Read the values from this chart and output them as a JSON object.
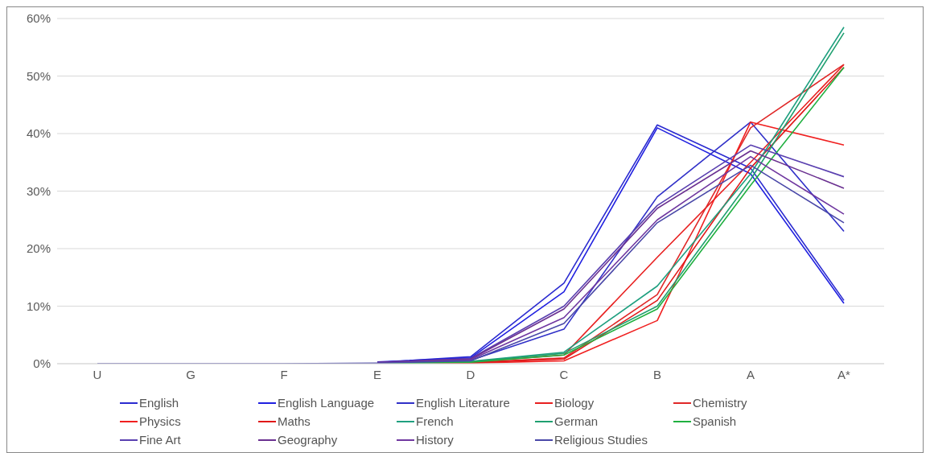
{
  "chart_data": {
    "type": "line",
    "categories": [
      "U",
      "G",
      "F",
      "E",
      "D",
      "C",
      "B",
      "A",
      "A*"
    ],
    "ylim": [
      0,
      60
    ],
    "yticks": [
      {
        "value": 0,
        "label": "0%"
      },
      {
        "value": 10,
        "label": "10%"
      },
      {
        "value": 20,
        "label": "20%"
      },
      {
        "value": 30,
        "label": "30%"
      },
      {
        "value": 40,
        "label": "40%"
      },
      {
        "value": 50,
        "label": "50%"
      },
      {
        "value": 60,
        "label": "60%"
      }
    ],
    "grid": "y",
    "legend": "bottom",
    "marker": "none",
    "line_style": "solid",
    "series": [
      {
        "name": "English",
        "color": "#2b2bd0",
        "values": [
          null,
          null,
          null,
          0.2,
          1.2,
          14,
          41.5,
          34,
          11
        ]
      },
      {
        "name": "English Language",
        "color": "#2020e0",
        "values": [
          null,
          null,
          null,
          0.3,
          1,
          12.5,
          41,
          33,
          10.5
        ]
      },
      {
        "name": "English Literature",
        "color": "#3030c8",
        "values": [
          null,
          null,
          null,
          0.1,
          0.6,
          6,
          29,
          42,
          23
        ]
      },
      {
        "name": "Biology",
        "color": "#e82020",
        "values": [
          null,
          null,
          null,
          0,
          0.3,
          1.5,
          18.5,
          35,
          52
        ]
      },
      {
        "name": "Chemistry",
        "color": "#e02828",
        "values": [
          null,
          null,
          null,
          0,
          0.2,
          1,
          12,
          41,
          52
        ]
      },
      {
        "name": "Physics",
        "color": "#f02020",
        "values": [
          null,
          null,
          null,
          0,
          0.1,
          0.5,
          7.5,
          42,
          38
        ]
      },
      {
        "name": "Maths",
        "color": "#e01818",
        "values": [
          null,
          null,
          null,
          0,
          0.15,
          0.8,
          11,
          34,
          51.5
        ]
      },
      {
        "name": "French",
        "color": "#20a080",
        "values": [
          null,
          null,
          null,
          0,
          0.4,
          2,
          13.5,
          33,
          58.5
        ]
      },
      {
        "name": "German",
        "color": "#20a070",
        "values": [
          null,
          null,
          null,
          0,
          0.35,
          1.8,
          10,
          32,
          57.5
        ]
      },
      {
        "name": "Spanish",
        "color": "#20b040",
        "values": [
          null,
          null,
          null,
          0,
          0.25,
          1.5,
          9.5,
          31,
          51.5
        ]
      },
      {
        "name": "Fine Art",
        "color": "#5a40b0",
        "values": [
          null,
          null,
          null,
          0.2,
          0.9,
          10,
          27.5,
          38,
          32.5
        ]
      },
      {
        "name": "Geography",
        "color": "#6a3090",
        "values": [
          null,
          null,
          null,
          0.25,
          0.8,
          9.5,
          27,
          37,
          30.5
        ]
      },
      {
        "name": "History",
        "color": "#7038a0",
        "values": [
          null,
          null,
          null,
          0.15,
          0.7,
          8,
          25,
          36,
          26
        ]
      },
      {
        "name": "Religious Studies",
        "color": "#4a48a8",
        "values": [
          0,
          0,
          0,
          0.1,
          0.5,
          7,
          24.5,
          34.5,
          24.5
        ]
      }
    ]
  }
}
